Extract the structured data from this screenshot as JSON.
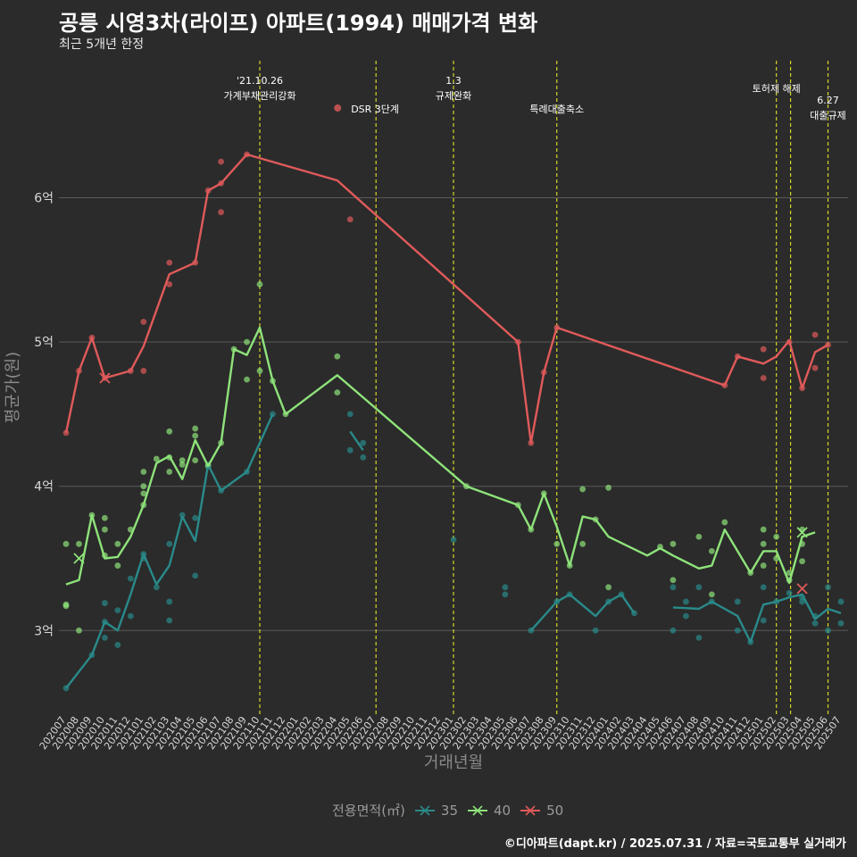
{
  "header": {
    "title": "공릉 시영3차(라이프) 아파트(1994) 매매가격 변화",
    "subtitle": "최근 5개년 한정"
  },
  "caption": "©디아파트(dapt.kr) / 2025.07.31 / 자료=국토교통부 실거래가",
  "colors": {
    "background": "#2b2b2b",
    "grid": "#5a5a5a",
    "event_line": "#d4d42a",
    "s35": "#2a8a8a",
    "s40": "#8ee37a",
    "s50": "#e05a5a"
  },
  "chart_data": {
    "type": "line",
    "xlabel": "거래년월",
    "ylabel": "평균가(원)",
    "ylim": [
      2.42,
      6.95
    ],
    "yticks": [
      3,
      4,
      5,
      6
    ],
    "ytick_labels": [
      "3억",
      "4억",
      "5억",
      "6억"
    ],
    "x_months": [
      "202007",
      "202008",
      "202009",
      "202010",
      "202011",
      "202012",
      "202101",
      "202102",
      "202103",
      "202104",
      "202105",
      "202106",
      "202107",
      "202108",
      "202109",
      "202110",
      "202111",
      "202112",
      "202201",
      "202202",
      "202203",
      "202204",
      "202205",
      "202206",
      "202207",
      "202208",
      "202209",
      "202210",
      "202211",
      "202212",
      "202301",
      "202302",
      "202303",
      "202304",
      "202305",
      "202306",
      "202307",
      "202308",
      "202309",
      "202310",
      "202311",
      "202312",
      "202401",
      "202402",
      "202403",
      "202404",
      "202405",
      "202406",
      "202407",
      "202408",
      "202409",
      "202410",
      "202411",
      "202412",
      "202501",
      "202502",
      "202503",
      "202504",
      "202505",
      "202506",
      "202507"
    ],
    "events": [
      {
        "x": 15.0,
        "label": "'21.10.26\n가계부채관리강화"
      },
      {
        "x": 24.0,
        "label": "DSR 3단계"
      },
      {
        "x": 30.0,
        "label": "1.3\n규제완화"
      },
      {
        "x": 38.0,
        "label": "특례대출축소"
      },
      {
        "x": 55.0,
        "label": "토허제 해제"
      },
      {
        "x": 56.1,
        "label": ""
      },
      {
        "x": 59.0,
        "label": "6.27\n대출규제"
      }
    ],
    "legend_title": "전용면적(㎡)",
    "series": [
      {
        "name": "35",
        "color": "#2a8a8a",
        "segments": [
          [
            [
              0,
              2.6
            ],
            [
              2,
              2.83
            ],
            [
              3,
              3.06
            ],
            [
              4,
              3.0
            ],
            [
              5,
              3.25
            ],
            [
              6,
              3.53
            ],
            [
              7,
              3.32
            ],
            [
              8,
              3.45
            ],
            [
              9,
              3.79
            ],
            [
              10,
              3.62
            ],
            [
              11,
              4.15
            ],
            [
              12,
              3.97
            ],
            [
              14,
              4.1
            ],
            [
              16,
              4.5
            ]
          ],
          [
            [
              22,
              4.38
            ],
            [
              23,
              4.25
            ]
          ],
          [
            [
              36,
              3.0
            ],
            [
              38,
              3.2
            ],
            [
              39,
              3.25
            ],
            [
              41,
              3.1
            ],
            [
              42,
              3.2
            ],
            [
              43,
              3.25
            ],
            [
              44,
              3.12
            ]
          ],
          [
            [
              47,
              3.16
            ],
            [
              49,
              3.15
            ],
            [
              50,
              3.2
            ],
            [
              52,
              3.1
            ],
            [
              53,
              2.92
            ],
            [
              54,
              3.18
            ],
            [
              55,
              3.2
            ],
            [
              56,
              3.23
            ],
            [
              57,
              3.25
            ],
            [
              58,
              3.08
            ],
            [
              59,
              3.15
            ],
            [
              60,
              3.12
            ]
          ]
        ],
        "points": [
          [
            0,
            2.6
          ],
          [
            2,
            2.83
          ],
          [
            3,
            3.19
          ],
          [
            3,
            2.95
          ],
          [
            3,
            3.06
          ],
          [
            4,
            2.9
          ],
          [
            4,
            3.14
          ],
          [
            5,
            3.1
          ],
          [
            5,
            3.36
          ],
          [
            6,
            3.53
          ],
          [
            6,
            3.5
          ],
          [
            7,
            3.3
          ],
          [
            8,
            3.2
          ],
          [
            8,
            3.07
          ],
          [
            8,
            3.6
          ],
          [
            9,
            3.8
          ],
          [
            10,
            3.38
          ],
          [
            10,
            3.78
          ],
          [
            11,
            4.15
          ],
          [
            12,
            3.97
          ],
          [
            14,
            4.1
          ],
          [
            16,
            4.5
          ],
          [
            22,
            4.5
          ],
          [
            22,
            4.25
          ],
          [
            23,
            4.3
          ],
          [
            23,
            4.2
          ],
          [
            30,
            3.63
          ],
          [
            34,
            3.3
          ],
          [
            34,
            3.25
          ],
          [
            36,
            3.0
          ],
          [
            38,
            3.2
          ],
          [
            39,
            3.25
          ],
          [
            41,
            3.0
          ],
          [
            42,
            3.2
          ],
          [
            43,
            3.25
          ],
          [
            44,
            3.12
          ],
          [
            47,
            3.3
          ],
          [
            47,
            3.0
          ],
          [
            48,
            3.1
          ],
          [
            48,
            3.2
          ],
          [
            49,
            3.3
          ],
          [
            49,
            2.95
          ],
          [
            50,
            3.2
          ],
          [
            52,
            3.2
          ],
          [
            52,
            3.0
          ],
          [
            53,
            2.92
          ],
          [
            54,
            3.07
          ],
          [
            54,
            3.3
          ],
          [
            55,
            3.2
          ],
          [
            56,
            3.26
          ],
          [
            57,
            3.23
          ],
          [
            57,
            3.2
          ],
          [
            58,
            3.1
          ],
          [
            58,
            3.05
          ],
          [
            59,
            3.3
          ],
          [
            59,
            3.0
          ],
          [
            60,
            3.2
          ],
          [
            60,
            3.05
          ]
        ],
        "crosses": []
      },
      {
        "name": "40",
        "color": "#8ee37a",
        "segments": [
          [
            [
              0,
              3.32
            ],
            [
              1,
              3.35
            ],
            [
              2,
              3.8
            ],
            [
              3,
              3.5
            ],
            [
              4,
              3.51
            ],
            [
              5,
              3.65
            ],
            [
              6,
              3.87
            ],
            [
              7,
              4.16
            ],
            [
              8,
              4.21
            ],
            [
              9,
              4.05
            ],
            [
              10,
              4.32
            ],
            [
              11,
              4.14
            ],
            [
              12,
              4.3
            ],
            [
              13,
              4.95
            ],
            [
              14,
              4.91
            ],
            [
              15,
              5.1
            ],
            [
              16,
              4.73
            ],
            [
              17,
              4.5
            ],
            [
              21,
              4.77
            ],
            [
              31,
              4.0
            ],
            [
              35,
              3.87
            ],
            [
              36,
              3.7
            ],
            [
              37,
              3.95
            ],
            [
              38,
              3.72
            ],
            [
              39,
              3.45
            ],
            [
              40,
              3.79
            ],
            [
              41,
              3.77
            ],
            [
              42,
              3.65
            ],
            [
              45,
              3.52
            ],
            [
              46,
              3.57
            ],
            [
              47,
              3.52
            ],
            [
              49,
              3.43
            ],
            [
              50,
              3.45
            ],
            [
              51,
              3.7
            ],
            [
              53,
              3.4
            ],
            [
              54,
              3.55
            ],
            [
              55,
              3.55
            ],
            [
              56,
              3.33
            ],
            [
              57,
              3.65
            ],
            [
              58,
              3.68
            ]
          ]
        ],
        "points": [
          [
            0,
            3.6
          ],
          [
            0,
            3.18
          ],
          [
            0,
            3.17
          ],
          [
            1,
            3.6
          ],
          [
            1,
            3.0
          ],
          [
            2,
            3.8
          ],
          [
            3,
            3.78
          ],
          [
            3,
            3.7
          ],
          [
            3,
            3.52
          ],
          [
            4,
            3.6
          ],
          [
            4,
            3.45
          ],
          [
            5,
            3.7
          ],
          [
            6,
            4.0
          ],
          [
            6,
            3.95
          ],
          [
            6,
            3.87
          ],
          [
            6,
            4.1
          ],
          [
            7,
            4.19
          ],
          [
            8,
            4.38
          ],
          [
            8,
            4.2
          ],
          [
            8,
            4.1
          ],
          [
            9,
            4.18
          ],
          [
            9,
            4.15
          ],
          [
            10,
            4.4
          ],
          [
            10,
            4.35
          ],
          [
            10,
            4.18
          ],
          [
            11,
            4.14
          ],
          [
            12,
            4.3
          ],
          [
            13,
            4.95
          ],
          [
            14,
            5.0
          ],
          [
            14,
            4.74
          ],
          [
            15,
            5.4
          ],
          [
            15,
            4.8
          ],
          [
            16,
            4.73
          ],
          [
            17,
            4.5
          ],
          [
            21,
            4.9
          ],
          [
            21,
            4.65
          ],
          [
            31,
            4.0
          ],
          [
            35,
            3.87
          ],
          [
            36,
            3.7
          ],
          [
            37,
            3.95
          ],
          [
            38,
            3.6
          ],
          [
            39,
            3.45
          ],
          [
            40,
            3.98
          ],
          [
            40,
            3.6
          ],
          [
            41,
            3.77
          ],
          [
            42,
            3.99
          ],
          [
            42,
            3.3
          ],
          [
            46,
            3.58
          ],
          [
            47,
            3.6
          ],
          [
            47,
            3.35
          ],
          [
            49,
            3.65
          ],
          [
            50,
            3.55
          ],
          [
            50,
            3.25
          ],
          [
            51,
            3.75
          ],
          [
            53,
            3.4
          ],
          [
            54,
            3.7
          ],
          [
            54,
            3.6
          ],
          [
            54,
            3.45
          ],
          [
            55,
            3.65
          ],
          [
            55,
            3.5
          ],
          [
            56,
            3.4
          ],
          [
            56,
            3.35
          ],
          [
            57,
            3.7
          ],
          [
            57,
            3.6
          ],
          [
            57,
            3.48
          ]
        ],
        "crosses": [
          [
            1,
            3.5
          ],
          [
            57,
            3.68
          ]
        ]
      },
      {
        "name": "50",
        "color": "#e05a5a",
        "segments": [
          [
            [
              0,
              4.37
            ],
            [
              1,
              4.8
            ],
            [
              2,
              5.03
            ],
            [
              3,
              4.75
            ],
            [
              5,
              4.8
            ],
            [
              6,
              4.97
            ],
            [
              8,
              5.47
            ],
            [
              10,
              5.55
            ],
            [
              11,
              6.05
            ],
            [
              12,
              6.1
            ],
            [
              14,
              6.3
            ],
            [
              21,
              6.12
            ],
            [
              35,
              5.0
            ],
            [
              36,
              4.3
            ],
            [
              37,
              4.79
            ],
            [
              38,
              5.1
            ],
            [
              51,
              4.7
            ],
            [
              52,
              4.9
            ],
            [
              54,
              4.85
            ],
            [
              55,
              4.9
            ],
            [
              56,
              5.01
            ],
            [
              57,
              4.68
            ],
            [
              58,
              4.93
            ],
            [
              59,
              4.98
            ]
          ]
        ],
        "points": [
          [
            0,
            4.37
          ],
          [
            1,
            4.8
          ],
          [
            2,
            5.03
          ],
          [
            3,
            4.75
          ],
          [
            5,
            4.8
          ],
          [
            6,
            5.14
          ],
          [
            6,
            4.8
          ],
          [
            8,
            5.55
          ],
          [
            8,
            5.4
          ],
          [
            10,
            5.55
          ],
          [
            11,
            6.05
          ],
          [
            12,
            6.25
          ],
          [
            12,
            6.1
          ],
          [
            12,
            5.9
          ],
          [
            14,
            6.3
          ],
          [
            22,
            5.85
          ],
          [
            35,
            5.0
          ],
          [
            36,
            4.3
          ],
          [
            37,
            4.79
          ],
          [
            38,
            5.1
          ],
          [
            51,
            4.7
          ],
          [
            52,
            4.9
          ],
          [
            54,
            4.95
          ],
          [
            54,
            4.75
          ],
          [
            56,
            5.0
          ],
          [
            57,
            4.68
          ],
          [
            58,
            5.05
          ],
          [
            58,
            4.82
          ],
          [
            59,
            4.98
          ]
        ],
        "crosses": [
          [
            3,
            4.75
          ],
          [
            57,
            3.29
          ]
        ]
      }
    ]
  }
}
